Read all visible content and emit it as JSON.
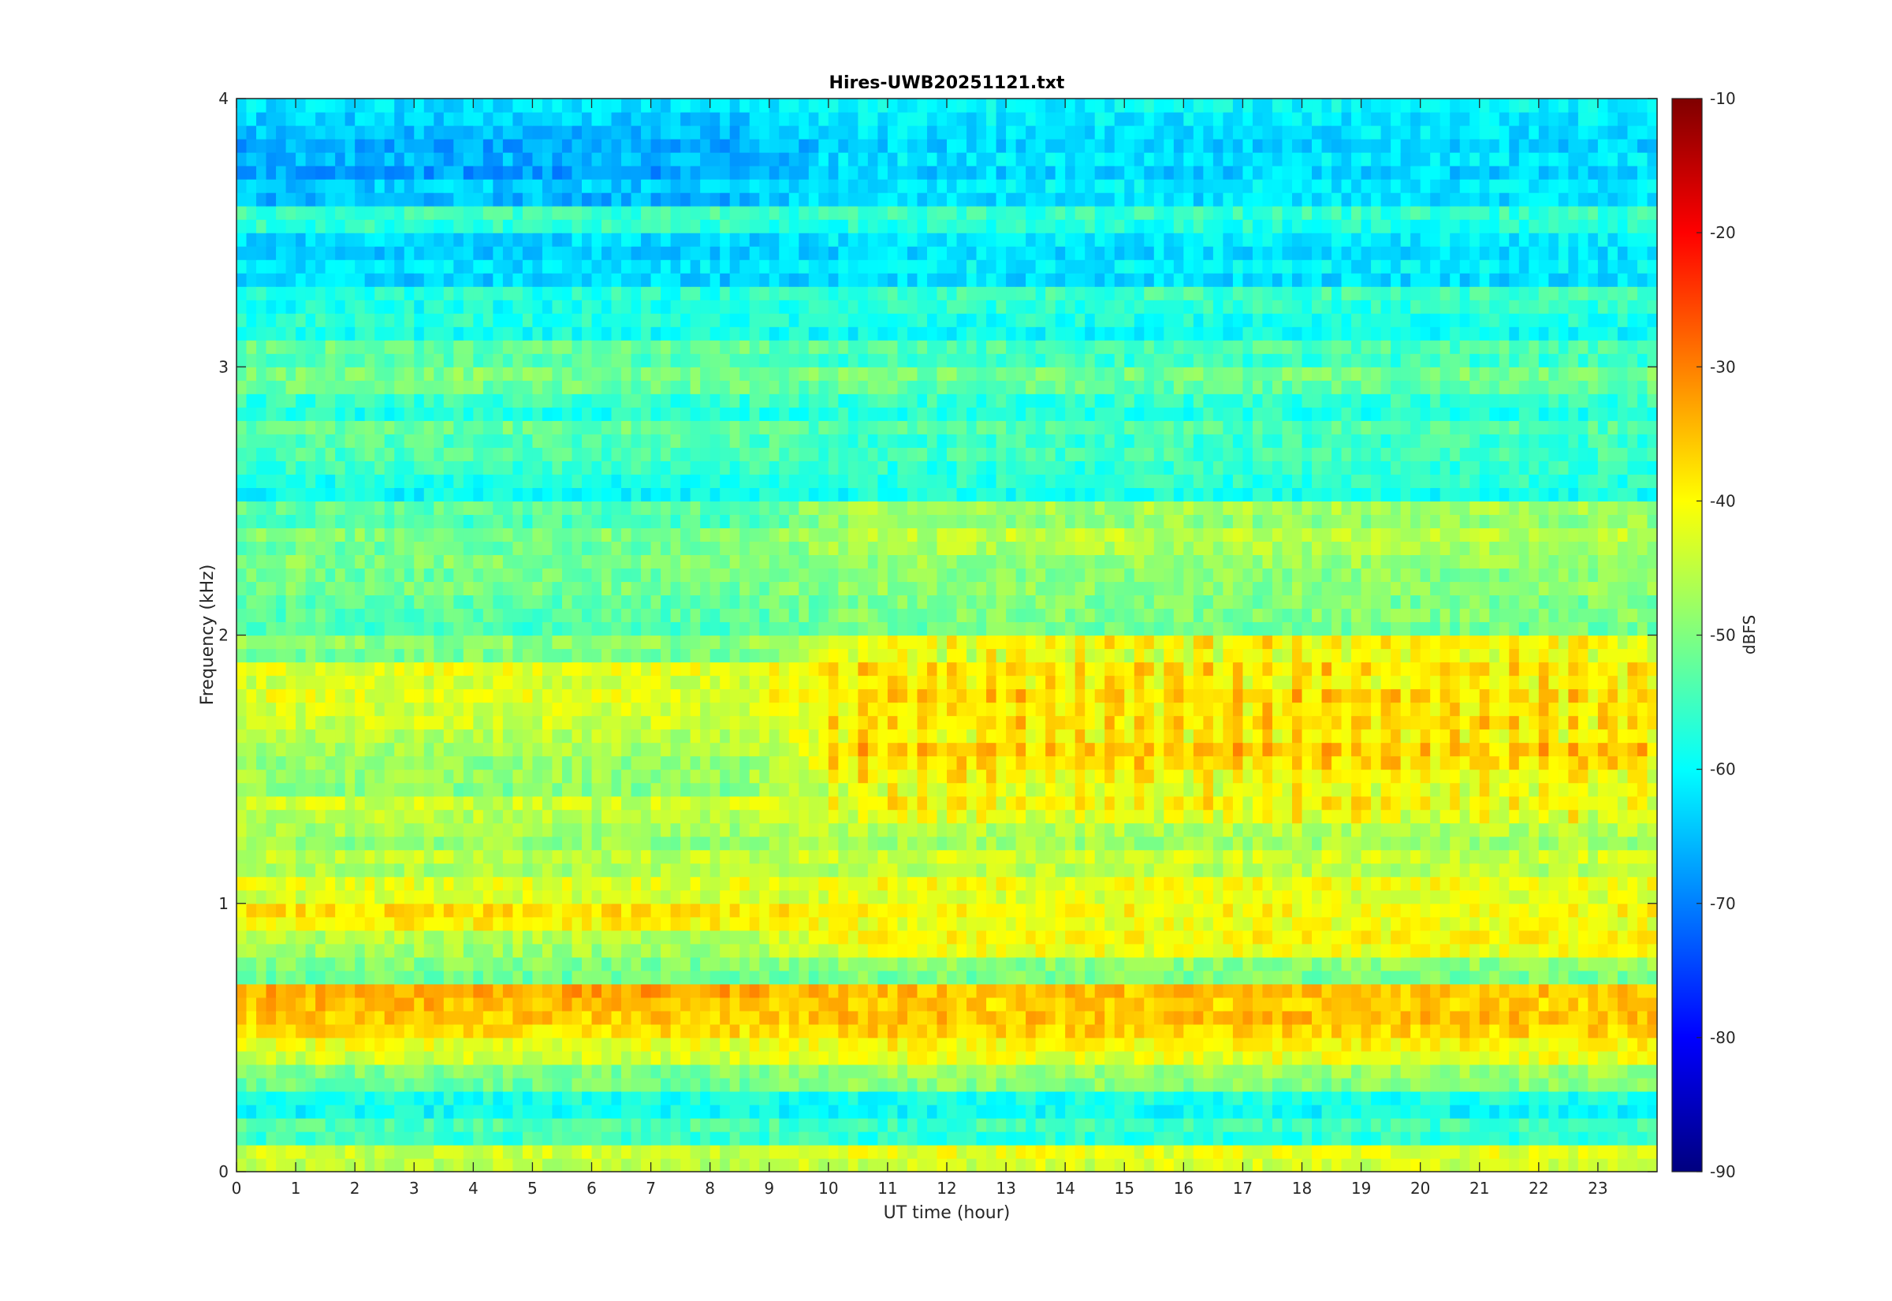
{
  "chart_data": {
    "type": "heatmap",
    "title": "Hires-UWB20251121.txt",
    "xlabel": "UT time (hour)",
    "ylabel": "Frequency (kHz)",
    "xlim": [
      0,
      24
    ],
    "ylim": [
      0,
      4
    ],
    "x_ticks": [
      0,
      1,
      2,
      3,
      4,
      5,
      6,
      7,
      8,
      9,
      10,
      11,
      12,
      13,
      14,
      15,
      16,
      17,
      18,
      19,
      20,
      21,
      22,
      23
    ],
    "y_ticks": [
      0,
      1,
      2,
      3,
      4
    ],
    "colorbar": {
      "label": "dBFS",
      "range": [
        -90,
        -10
      ],
      "ticks": [
        -10,
        -20,
        -30,
        -40,
        -50,
        -60,
        -70,
        -80,
        -90
      ],
      "colormap": "jet"
    },
    "bands": [
      {
        "f": 0.05,
        "day": -44,
        "night": -42
      },
      {
        "f": 0.15,
        "day": -54,
        "night": -55
      },
      {
        "f": 0.25,
        "day": -58,
        "night": -58
      },
      {
        "f": 0.35,
        "day": -50,
        "night": -48
      },
      {
        "f": 0.45,
        "day": -42,
        "night": -40
      },
      {
        "f": 0.55,
        "day": -36,
        "night": -35
      },
      {
        "f": 0.65,
        "day": -33,
        "night": -35
      },
      {
        "f": 0.75,
        "day": -50,
        "night": -49
      },
      {
        "f": 0.85,
        "day": -46,
        "night": -40
      },
      {
        "f": 0.95,
        "day": -38,
        "night": -40
      },
      {
        "f": 1.05,
        "day": -42,
        "night": -41
      },
      {
        "f": 1.15,
        "day": -45,
        "night": -44
      },
      {
        "f": 1.25,
        "day": -47,
        "night": -46
      },
      {
        "f": 1.35,
        "day": -44,
        "night": -40
      },
      {
        "f": 1.45,
        "day": -48,
        "night": -40
      },
      {
        "f": 1.55,
        "day": -47,
        "night": -36
      },
      {
        "f": 1.65,
        "day": -44,
        "night": -38
      },
      {
        "f": 1.75,
        "day": -42,
        "night": -37
      },
      {
        "f": 1.85,
        "day": -42,
        "night": -38
      },
      {
        "f": 1.95,
        "day": -49,
        "night": -40
      },
      {
        "f": 2.05,
        "day": -53,
        "night": -50
      },
      {
        "f": 2.15,
        "day": -51,
        "night": -49
      },
      {
        "f": 2.25,
        "day": -50,
        "night": -48
      },
      {
        "f": 2.35,
        "day": -50,
        "night": -45
      },
      {
        "f": 2.45,
        "day": -53,
        "night": -47
      },
      {
        "f": 2.55,
        "day": -58,
        "night": -57
      },
      {
        "f": 2.65,
        "day": -54,
        "night": -55
      },
      {
        "f": 2.75,
        "day": -52,
        "night": -54
      },
      {
        "f": 2.85,
        "day": -56,
        "night": -56
      },
      {
        "f": 2.95,
        "day": -50,
        "night": -51
      },
      {
        "f": 3.05,
        "day": -52,
        "night": -54
      },
      {
        "f": 3.15,
        "day": -57,
        "night": -58
      },
      {
        "f": 3.25,
        "day": -57,
        "night": -55
      },
      {
        "f": 3.35,
        "day": -62,
        "night": -61
      },
      {
        "f": 3.45,
        "day": -63,
        "night": -61
      },
      {
        "f": 3.55,
        "day": -55,
        "night": -56
      },
      {
        "f": 3.65,
        "day": -64,
        "night": -61
      },
      {
        "f": 3.75,
        "day": -66,
        "night": -62
      },
      {
        "f": 3.85,
        "day": -65,
        "night": -62
      },
      {
        "f": 3.95,
        "day": -62,
        "night": -60
      }
    ]
  }
}
